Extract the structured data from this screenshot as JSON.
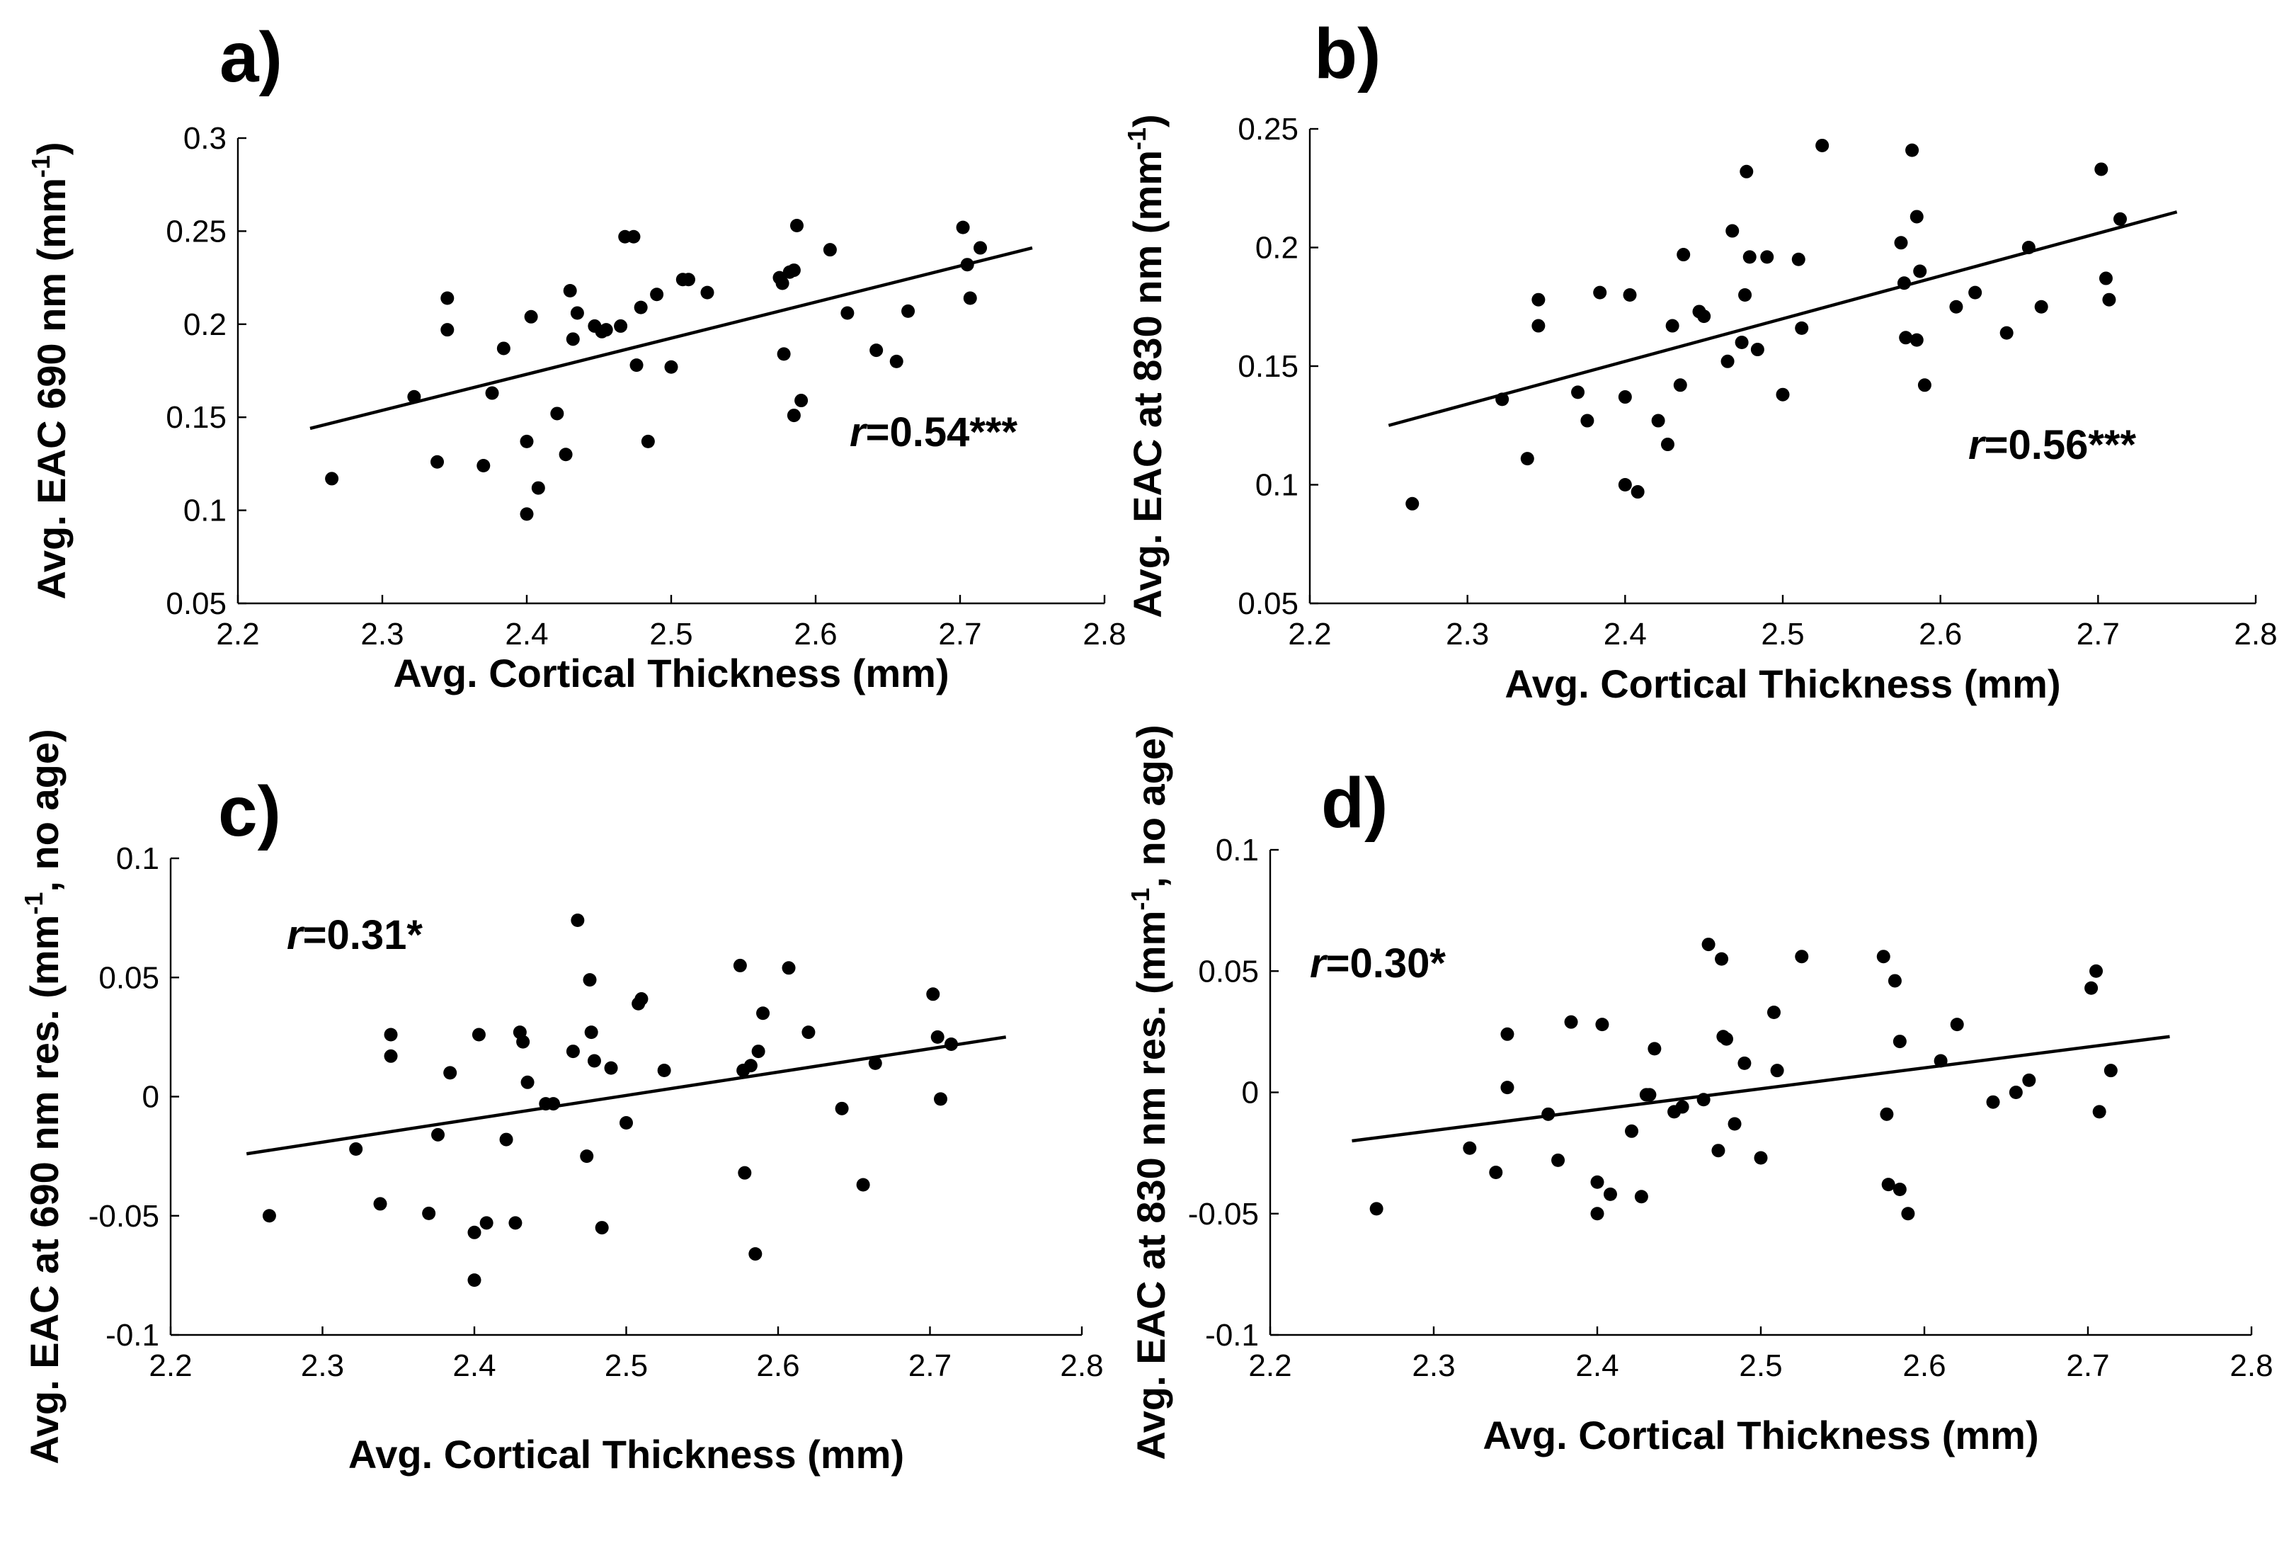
{
  "chart_data": [
    {
      "type": "scatter",
      "panel": "a)",
      "xlabel": "Avg. Cortical Thickness (mm)",
      "ylabel_parts": [
        "Avg. EAC 690 nm (mm",
        "-1",
        ")"
      ],
      "xlim": [
        2.2,
        2.8
      ],
      "ylim": [
        0.05,
        0.3
      ],
      "xticks": [
        2.2,
        2.3,
        2.4,
        2.5,
        2.6,
        2.7,
        2.8
      ],
      "yticks": [
        0.05,
        0.1,
        0.15,
        0.2,
        0.25,
        0.3
      ],
      "xtick_labels": [
        "2.2",
        "2.3",
        "2.4",
        "2.5",
        "2.6",
        "2.7",
        "2.8"
      ],
      "ytick_labels": [
        "0.05",
        "0.1",
        "0.15",
        "0.2",
        "0.25",
        "0.3"
      ],
      "annotation": {
        "r": "r",
        "value": "=0.54***"
      },
      "fit": [
        [
          2.25,
          0.144
        ],
        [
          2.75,
          0.241
        ]
      ],
      "x": [
        2.265,
        2.322,
        2.338,
        2.345,
        2.345,
        2.37,
        2.376,
        2.384,
        2.4,
        2.4,
        2.403,
        2.408,
        2.421,
        2.427,
        2.43,
        2.432,
        2.435,
        2.447,
        2.452,
        2.455,
        2.465,
        2.468,
        2.474,
        2.476,
        2.479,
        2.484,
        2.49,
        2.5,
        2.508,
        2.512,
        2.525,
        2.575,
        2.577,
        2.578,
        2.582,
        2.585,
        2.585,
        2.587,
        2.59,
        2.61,
        2.622,
        2.642,
        2.656,
        2.664,
        2.702,
        2.705,
        2.707,
        2.714
      ],
      "y": [
        0.117,
        0.161,
        0.126,
        0.197,
        0.214,
        0.124,
        0.163,
        0.187,
        0.098,
        0.137,
        0.204,
        0.112,
        0.152,
        0.13,
        0.218,
        0.192,
        0.206,
        0.199,
        0.196,
        0.197,
        0.199,
        0.247,
        0.247,
        0.178,
        0.209,
        0.137,
        0.216,
        0.177,
        0.224,
        0.224,
        0.217,
        0.225,
        0.222,
        0.184,
        0.228,
        0.151,
        0.229,
        0.253,
        0.159,
        0.24,
        0.206,
        0.186,
        0.18,
        0.207,
        0.252,
        0.232,
        0.214,
        0.241
      ]
    },
    {
      "type": "scatter",
      "panel": "b)",
      "xlabel": "Avg. Cortical Thickness (mm)",
      "ylabel_parts": [
        "Avg. EAC at 830 nm (mm",
        "-1",
        ")"
      ],
      "xlim": [
        2.2,
        2.8
      ],
      "ylim": [
        0.05,
        0.25
      ],
      "xticks": [
        2.2,
        2.3,
        2.4,
        2.5,
        2.6,
        2.7,
        2.8
      ],
      "yticks": [
        0.05,
        0.1,
        0.15,
        0.2,
        0.25
      ],
      "xtick_labels": [
        "2.2",
        "2.3",
        "2.4",
        "2.5",
        "2.6",
        "2.7",
        "2.8"
      ],
      "ytick_labels": [
        "0.05",
        "0.1",
        "0.15",
        "0.2",
        "0.25"
      ],
      "annotation": {
        "r": "r",
        "value": "=0.56***"
      },
      "fit": [
        [
          2.25,
          0.125
        ],
        [
          2.75,
          0.215
        ]
      ],
      "x": [
        2.265,
        2.322,
        2.338,
        2.345,
        2.345,
        2.37,
        2.376,
        2.384,
        2.4,
        2.4,
        2.403,
        2.408,
        2.421,
        2.427,
        2.43,
        2.435,
        2.437,
        2.447,
        2.45,
        2.465,
        2.468,
        2.474,
        2.476,
        2.477,
        2.479,
        2.484,
        2.49,
        2.5,
        2.51,
        2.512,
        2.525,
        2.575,
        2.577,
        2.578,
        2.582,
        2.585,
        2.585,
        2.587,
        2.59,
        2.61,
        2.622,
        2.642,
        2.656,
        2.664,
        2.702,
        2.705,
        2.707,
        2.714
      ],
      "y": [
        0.092,
        0.136,
        0.111,
        0.167,
        0.178,
        0.139,
        0.127,
        0.181,
        0.137,
        0.1,
        0.18,
        0.097,
        0.127,
        0.117,
        0.167,
        0.142,
        0.197,
        0.173,
        0.171,
        0.152,
        0.207,
        0.16,
        0.18,
        0.232,
        0.196,
        0.157,
        0.196,
        0.138,
        0.195,
        0.166,
        0.243,
        0.202,
        0.185,
        0.162,
        0.241,
        0.213,
        0.161,
        0.19,
        0.142,
        0.175,
        0.181,
        0.164,
        0.2,
        0.175,
        0.233,
        0.187,
        0.178,
        0.212
      ]
    },
    {
      "type": "scatter",
      "panel": "c)",
      "xlabel": "Avg. Cortical Thickness (mm)",
      "ylabel_parts": [
        "Avg. EAC at 690 nm res. (mm",
        "-1",
        ", no age)"
      ],
      "xlim": [
        2.2,
        2.8
      ],
      "ylim": [
        -0.1,
        0.1
      ],
      "xticks": [
        2.2,
        2.3,
        2.4,
        2.5,
        2.6,
        2.7,
        2.8
      ],
      "yticks": [
        -0.1,
        -0.05,
        0,
        0.05,
        0.1
      ],
      "xtick_labels": [
        "2.2",
        "2.3",
        "2.4",
        "2.5",
        "2.6",
        "2.7",
        "2.8"
      ],
      "ytick_labels": [
        "-0.1",
        "-0.05",
        "0",
        "0.05",
        "0.1"
      ],
      "annotation": {
        "r": "r",
        "value": "=0.31*"
      },
      "fit": [
        [
          2.25,
          -0.024
        ],
        [
          2.75,
          0.025
        ]
      ],
      "x": [
        2.265,
        2.322,
        2.338,
        2.345,
        2.345,
        2.37,
        2.376,
        2.384,
        2.4,
        2.4,
        2.403,
        2.408,
        2.421,
        2.427,
        2.43,
        2.432,
        2.435,
        2.447,
        2.452,
        2.465,
        2.468,
        2.474,
        2.476,
        2.477,
        2.479,
        2.484,
        2.49,
        2.5,
        2.508,
        2.51,
        2.525,
        2.575,
        2.577,
        2.578,
        2.582,
        2.585,
        2.587,
        2.59,
        2.607,
        2.62,
        2.642,
        2.656,
        2.664,
        2.702,
        2.705,
        2.707,
        2.714
      ],
      "y": [
        -0.05,
        -0.022,
        -0.045,
        0.026,
        0.017,
        -0.049,
        -0.016,
        0.01,
        -0.077,
        -0.057,
        0.026,
        -0.053,
        -0.018,
        -0.053,
        0.027,
        0.023,
        0.006,
        -0.003,
        -0.003,
        0.019,
        0.074,
        -0.025,
        0.049,
        0.027,
        0.015,
        -0.055,
        0.012,
        -0.011,
        0.039,
        0.041,
        0.011,
        0.055,
        0.011,
        -0.032,
        0.013,
        -0.066,
        0.019,
        0.035,
        0.054,
        0.027,
        -0.005,
        -0.037,
        0.014,
        0.043,
        0.025,
        -0.001,
        0.022
      ]
    },
    {
      "type": "scatter",
      "panel": "d)",
      "xlabel": "Avg. Cortical Thickness (mm)",
      "ylabel_parts": [
        "Avg. EAC at 830 nm  res. (mm",
        "-1",
        ", no age)"
      ],
      "xlim": [
        2.2,
        2.8
      ],
      "ylim": [
        -0.1,
        0.1
      ],
      "xticks": [
        2.2,
        2.3,
        2.4,
        2.5,
        2.6,
        2.7,
        2.8
      ],
      "yticks": [
        -0.1,
        -0.05,
        0,
        0.05,
        0.1
      ],
      "xtick_labels": [
        "2.2",
        "2.3",
        "2.4",
        "2.5",
        "2.6",
        "2.7",
        "2.8"
      ],
      "ytick_labels": [
        "-0.1",
        "-0.05",
        "0",
        "0.05",
        "0.1"
      ],
      "annotation": {
        "r": "r",
        "value": "=0.30*"
      },
      "fit": [
        [
          2.25,
          -0.02
        ],
        [
          2.75,
          0.023
        ]
      ],
      "x": [
        2.265,
        2.322,
        2.338,
        2.345,
        2.345,
        2.37,
        2.376,
        2.384,
        2.4,
        2.4,
        2.403,
        2.408,
        2.421,
        2.427,
        2.43,
        2.432,
        2.435,
        2.447,
        2.452,
        2.465,
        2.468,
        2.474,
        2.476,
        2.477,
        2.479,
        2.484,
        2.49,
        2.5,
        2.508,
        2.51,
        2.525,
        2.575,
        2.577,
        2.578,
        2.582,
        2.585,
        2.585,
        2.59,
        2.61,
        2.62,
        2.642,
        2.656,
        2.664,
        2.702,
        2.705,
        2.707,
        2.714
      ],
      "y": [
        -0.048,
        -0.023,
        -0.033,
        0.002,
        0.024,
        -0.009,
        -0.028,
        0.029,
        -0.037,
        -0.05,
        0.028,
        -0.042,
        -0.016,
        -0.043,
        -0.001,
        -0.001,
        0.018,
        -0.008,
        -0.006,
        -0.003,
        0.061,
        -0.024,
        0.055,
        0.023,
        0.022,
        -0.013,
        0.012,
        -0.027,
        0.033,
        0.009,
        0.056,
        0.056,
        -0.009,
        -0.038,
        0.046,
        0.021,
        -0.04,
        -0.05,
        0.013,
        0.028,
        -0.004,
        0.0,
        0.005,
        0.043,
        0.05,
        -0.008,
        0.009
      ]
    }
  ]
}
